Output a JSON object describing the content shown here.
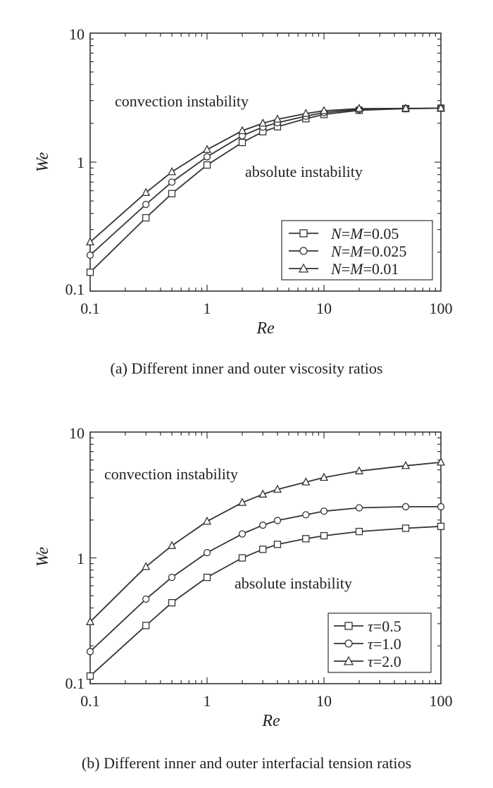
{
  "chart_data": [
    {
      "type": "line",
      "caption": "(a) Different inner and outer viscosity ratios",
      "xlabel": "Re",
      "ylabel": "We",
      "xscale": "log",
      "yscale": "log",
      "xlim": [
        0.1,
        100
      ],
      "ylim": [
        0.1,
        10
      ],
      "xticks": [
        "0.1",
        "1",
        "10",
        "100"
      ],
      "yticks": [
        "0.1",
        "1",
        "10"
      ],
      "annotations": [
        "convection instability",
        "absolute instability"
      ],
      "legend_position": "bottom-right",
      "x": [
        0.1,
        0.3,
        0.5,
        1,
        2,
        3,
        4,
        7,
        10,
        20,
        50,
        100
      ],
      "series": [
        {
          "name": "N=M=0.05",
          "marker": "square",
          "values": [
            0.14,
            0.37,
            0.57,
            0.95,
            1.42,
            1.72,
            1.88,
            2.17,
            2.34,
            2.52,
            2.6,
            2.62
          ]
        },
        {
          "name": "N=M=0.025",
          "marker": "circle",
          "values": [
            0.19,
            0.47,
            0.7,
            1.1,
            1.6,
            1.87,
            2.02,
            2.27,
            2.42,
            2.56,
            2.6,
            2.62
          ]
        },
        {
          "name": "N=M=0.01",
          "marker": "triangle",
          "values": [
            0.24,
            0.58,
            0.84,
            1.25,
            1.75,
            2.0,
            2.15,
            2.38,
            2.5,
            2.6,
            2.61,
            2.62
          ]
        }
      ],
      "legend_labels": [
        {
          "pre": "N",
          "mid": "=",
          "var": "M",
          "val": "=0.05"
        },
        {
          "pre": "N",
          "mid": "=",
          "var": "M",
          "val": "=0.025"
        },
        {
          "pre": "N",
          "mid": "=",
          "var": "M",
          "val": "=0.01"
        }
      ]
    },
    {
      "type": "line",
      "caption": "(b) Different inner and outer interfacial tension ratios",
      "xlabel": "Re",
      "ylabel": "We",
      "xscale": "log",
      "yscale": "log",
      "xlim": [
        0.1,
        100
      ],
      "ylim": [
        0.1,
        10
      ],
      "xticks": [
        "0.1",
        "1",
        "10",
        "100"
      ],
      "yticks": [
        "0.1",
        "1",
        "10"
      ],
      "annotations": [
        "convection instability",
        "absolute instability"
      ],
      "legend_position": "bottom-right",
      "x": [
        0.1,
        0.3,
        0.5,
        1,
        2,
        3,
        4,
        7,
        10,
        20,
        50,
        100
      ],
      "series": [
        {
          "name": "τ=0.5",
          "marker": "square",
          "values": [
            0.115,
            0.29,
            0.44,
            0.7,
            1.0,
            1.17,
            1.28,
            1.42,
            1.5,
            1.62,
            1.72,
            1.78
          ]
        },
        {
          "name": "τ=1.0",
          "marker": "circle",
          "values": [
            0.18,
            0.47,
            0.7,
            1.1,
            1.55,
            1.82,
            1.98,
            2.2,
            2.35,
            2.5,
            2.55,
            2.55
          ]
        },
        {
          "name": "τ=2.0",
          "marker": "triangle",
          "values": [
            0.31,
            0.85,
            1.25,
            1.95,
            2.75,
            3.2,
            3.5,
            4.0,
            4.35,
            4.9,
            5.4,
            5.75
          ]
        }
      ],
      "legend_labels": [
        {
          "pre": "τ",
          "val": "=0.5"
        },
        {
          "pre": "τ",
          "val": "=1.0"
        },
        {
          "pre": "τ",
          "val": "=2.0"
        }
      ]
    }
  ]
}
